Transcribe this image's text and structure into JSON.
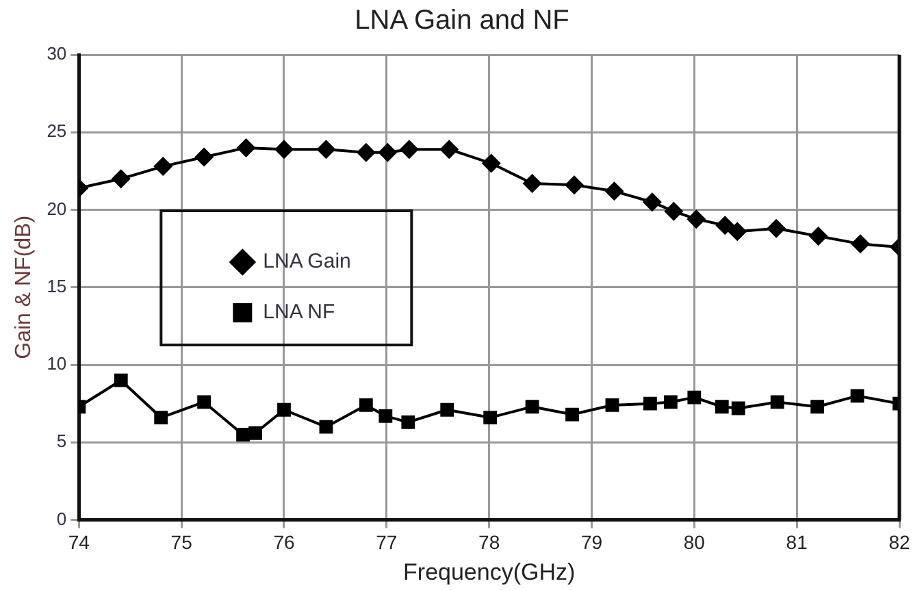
{
  "chart_data": {
    "type": "line",
    "title": "LNA Gain and NF",
    "xlabel": "Frequency(GHz)",
    "ylabel": "Gain & NF(dB)",
    "xlim": [
      74,
      82
    ],
    "xticks": [
      74,
      75,
      76,
      77,
      78,
      79,
      80,
      81,
      82
    ],
    "ylim": [
      0,
      30
    ],
    "yticks": [
      0,
      5,
      10,
      15,
      20,
      25,
      30
    ],
    "grid": true,
    "legend": "left",
    "line_style": "solid",
    "series": [
      {
        "name": "LNA Gain",
        "color": "#000000",
        "marker": "diamond",
        "x": [
          74.0,
          74.41,
          74.82,
          75.22,
          75.63,
          76.0,
          76.41,
          76.8,
          77.01,
          77.22,
          77.61,
          78.02,
          78.42,
          78.83,
          79.22,
          79.59,
          79.8,
          80.02,
          80.3,
          80.42,
          80.8,
          81.21,
          81.62,
          82.0
        ],
        "values": [
          21.4,
          22.0,
          22.8,
          23.4,
          24.0,
          23.9,
          23.9,
          23.7,
          23.7,
          23.9,
          23.9,
          23.0,
          21.7,
          21.6,
          21.2,
          20.5,
          19.9,
          19.4,
          19.0,
          18.6,
          18.8,
          18.3,
          17.8,
          17.6
        ]
      },
      {
        "name": "LNA NF",
        "color": "#000000",
        "marker": "square",
        "x": [
          74.0,
          74.41,
          74.8,
          75.22,
          75.6,
          75.72,
          76.0,
          76.41,
          76.8,
          76.99,
          77.21,
          77.59,
          78.01,
          78.42,
          78.81,
          79.2,
          79.57,
          79.77,
          80.0,
          80.27,
          80.43,
          80.81,
          81.2,
          81.59,
          82.0
        ],
        "values": [
          7.3,
          9.0,
          6.6,
          7.6,
          5.5,
          5.6,
          7.1,
          6.0,
          7.4,
          6.7,
          6.3,
          7.1,
          6.6,
          7.3,
          6.8,
          7.4,
          7.5,
          7.6,
          7.9,
          7.3,
          7.2,
          7.6,
          7.3,
          8.0,
          7.5
        ]
      }
    ]
  }
}
